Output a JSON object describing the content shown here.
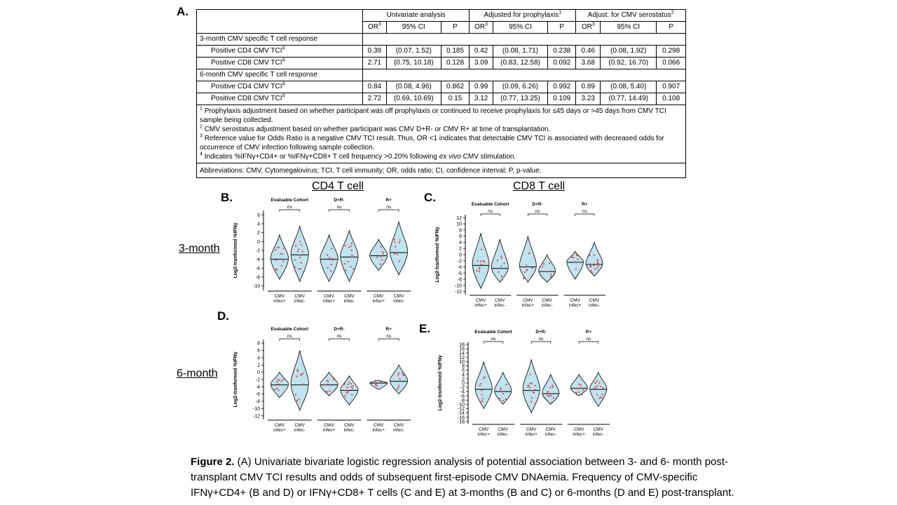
{
  "panelA": {
    "letter": "A.",
    "groups": [
      "Univariate analysis",
      "Adjusted for prophylaxis",
      "Adjust. for CMV serostatus"
    ],
    "group_sup": [
      "",
      "1",
      "2"
    ],
    "subheaders": [
      "OR",
      "95% CI",
      "P"
    ],
    "or_sup": "3",
    "sections": [
      {
        "title": "3-month CMV specific T cell response",
        "rows": [
          {
            "label": "Positive CD4 CMV TCI",
            "cells": [
              "0.39",
              "(0.07, 1.52)",
              "0.185",
              "0.42",
              "(0.08, 1.71)",
              "0.238",
              "0.46",
              "(0.08, 1.92)",
              "0.298"
            ]
          },
          {
            "label": "Positive CD8 CMV TCI",
            "cells": [
              "2.71",
              "(0.75, 10.18)",
              "0.128",
              "3.09",
              "(0.83, 12.58)",
              "0.092",
              "3.68",
              "(0.92, 16.70)",
              "0.066"
            ]
          }
        ]
      },
      {
        "title": "6-month CMV specific T cell response",
        "rows": [
          {
            "label": "Positive CD4 CMV TCI",
            "cells": [
              "0.84",
              "(0.08, 4.96)",
              "0.862",
              "0.99",
              "(0.09, 6.26)",
              "0.992",
              "0.89",
              "(0.08, 5.40)",
              "0.907"
            ]
          },
          {
            "label": "Positive CD8 CMV TCI",
            "cells": [
              "2.72",
              "(0.69, 10.69)",
              "0.15",
              "3.12",
              "(0.77, 13.25)",
              "0.109",
              "3.23",
              "(0.77, 14.49)",
              "0.108"
            ]
          }
        ]
      }
    ],
    "row_sup": "4",
    "footnotes": [
      {
        "sup": "1",
        "text": "Prophylaxis adjustment based on whether participant was off prophylaxis or continued to receive prophylaxis for ≤45 days or >45 days from CMV TCI sample being collected."
      },
      {
        "sup": "2",
        "text": "CMV serostatus adjustment based on whether participant was CMV D+R- or CMV R+ at time of transplantation."
      },
      {
        "sup": "3",
        "text": "Reference value for Odds Ratio is a negative CMV TCI result.  Thus, OR <1 indicates that detectable CMV TCI is associated with decreased odds for occurrence of CMV infection following sample collection."
      },
      {
        "sup": "4",
        "text_pre": "Indicates %IFNγ+CD4+ or %IFNγ+CD8+ T cell frequency >0.20% following ",
        "text_em": "ex vivo",
        "text_post": " CMV stimulation."
      }
    ],
    "abbreviations": "Abbreviations: CMV, Cytomegalovirus; TCI, T cell immunity; OR, odds ratio; CI, confidence interval; P, p-value."
  },
  "headings": {
    "cd4": "CD4 T cell",
    "cd8": "CD8 T cell",
    "month3": "3-month",
    "month6": "6-month"
  },
  "violin_common": {
    "ylabel": "Log2-tranformed %IFNγ",
    "groups": [
      "Evaluable Cohort",
      "D+R-",
      "R+"
    ],
    "sig": "ns",
    "xlabels": [
      [
        "CMV",
        "infec+"
      ],
      [
        "CMV",
        "infec-"
      ]
    ],
    "fill_color": "#bfe3ef",
    "point_color": "#e23b3b"
  },
  "chart_data": [
    {
      "type": "violin",
      "panel": "B.",
      "yticks": [
        6,
        4,
        2,
        0,
        -2,
        -4,
        -6,
        -8,
        -10
      ],
      "ylim": [
        -11,
        7
      ],
      "violins": [
        {
          "min": -8.5,
          "max": 1.5,
          "median": -4
        },
        {
          "min": -9,
          "max": 3.5,
          "median": -3
        },
        {
          "min": -9,
          "max": 1.5,
          "median": -4
        },
        {
          "min": -9,
          "max": 2.5,
          "median": -3.5
        },
        {
          "min": -6.5,
          "max": 0.5,
          "median": -3.2
        },
        {
          "min": -7.5,
          "max": 4.5,
          "median": -2.5
        }
      ]
    },
    {
      "type": "violin",
      "panel": "C.",
      "yticks": [
        12,
        10,
        8,
        6,
        4,
        2,
        0,
        -2,
        -4,
        -6,
        -8,
        -10,
        -12
      ],
      "ylim": [
        -13,
        13
      ],
      "violins": [
        {
          "min": -11,
          "max": 7,
          "median": -3.5
        },
        {
          "min": -9,
          "max": 5,
          "median": -4.5
        },
        {
          "min": -9,
          "max": 6,
          "median": -4
        },
        {
          "min": -9,
          "max": 0,
          "median": -5.5
        },
        {
          "min": -8,
          "max": 1,
          "median": -2.5
        },
        {
          "min": -7,
          "max": 4,
          "median": -3.2
        }
      ]
    },
    {
      "type": "violin",
      "panel": "D.",
      "yticks": [
        8,
        6,
        4,
        2,
        0,
        -2,
        -4,
        -6,
        -8,
        -10,
        -12
      ],
      "ylim": [
        -13,
        9
      ],
      "violins": [
        {
          "min": -7,
          "max": 0,
          "median": -3.5
        },
        {
          "min": -10.5,
          "max": 6,
          "median": -3.5
        },
        {
          "min": -6.5,
          "max": 0,
          "median": -3.5
        },
        {
          "min": -9,
          "max": -1,
          "median": -5
        },
        {
          "min": -4.8,
          "max": -2.2,
          "median": -3
        },
        {
          "min": -6,
          "max": 2,
          "median": -2.5
        }
      ]
    },
    {
      "type": "violin",
      "panel": "E.",
      "yticks": [
        18,
        16,
        14,
        12,
        10,
        8,
        6,
        4,
        2,
        0,
        -2,
        -4,
        -6,
        -8,
        -10,
        -12,
        -14,
        -16,
        -18
      ],
      "ylim": [
        -19,
        19
      ],
      "violins": [
        {
          "min": -12,
          "max": 10,
          "median": -3
        },
        {
          "min": -10,
          "max": 5,
          "median": -4
        },
        {
          "min": -14,
          "max": 11,
          "median": -3.5
        },
        {
          "min": -10,
          "max": 4,
          "median": -5
        },
        {
          "min": -6,
          "max": 4,
          "median": -2.5
        },
        {
          "min": -11,
          "max": 5,
          "median": -3
        }
      ]
    }
  ],
  "caption": {
    "label": "Figure 2.",
    "text": " (A) Univariate bivariate logistic regression analysis of potential association between 3- and 6- month post-transplant CMV TCI results and odds of subsequent first-episode CMV DNAemia. Frequency of CMV-specific IFNγ+CD4+ (B and D) or IFNγ+CD8+ T cells (C and E) at 3-months (B and C) or 6-months (D and E) post-transplant."
  }
}
